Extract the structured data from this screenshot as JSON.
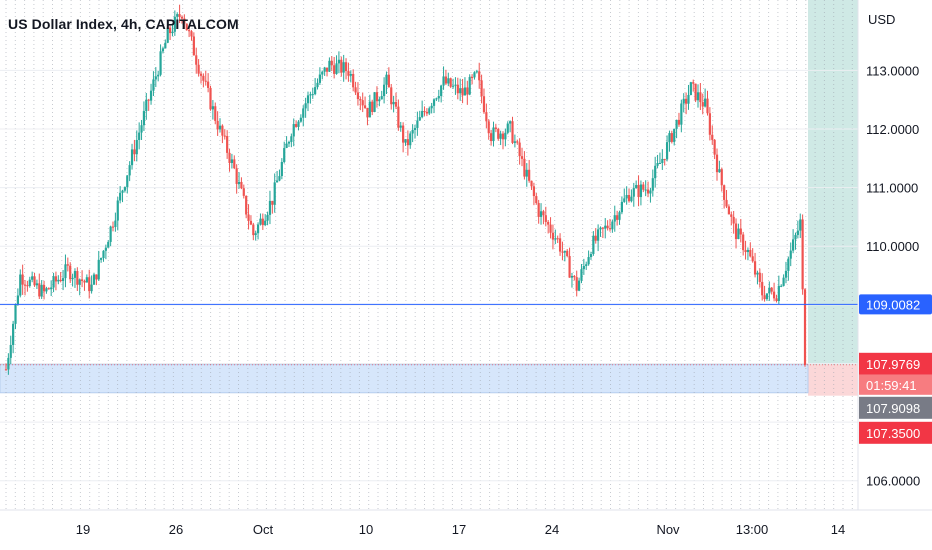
{
  "title": "US Dollar Index, 4h, CAPITALCOM",
  "currency": "USD",
  "colors": {
    "up": "#26a69a",
    "down": "#ef5350",
    "grid": "#9aa0ab",
    "h_line": "#2962ff",
    "h_tag": "#2962ff",
    "price_tag": "#f23645",
    "price_tag_countdown": "#f77c80",
    "gray_tag": "#787b86",
    "zone_fill": "#d6e6fb",
    "target_fill": "#cfe9e5",
    "stop_fill": "#fbd7d8",
    "text": "#131722"
  },
  "chart_data": {
    "type": "candlestick",
    "timeframe": "4h",
    "symbol": "US Dollar Index",
    "source": "CAPITALCOM",
    "y_axis": {
      "min": 105.5,
      "max": 114.2,
      "ticks": [
        "113.0000",
        "112.0000",
        "111.0000",
        "110.0000",
        "106.0000"
      ]
    },
    "x_axis": {
      "ticks": [
        "19",
        "26",
        "Oct",
        "10",
        "17",
        "24",
        "Nov",
        "13:00",
        "14"
      ]
    },
    "horizontal_line": {
      "value": 109.0082,
      "label": "109.0082"
    },
    "last_price": {
      "value": 107.9769,
      "label": "107.9769",
      "countdown": "01:59:41"
    },
    "markers": [
      {
        "value": 107.9098,
        "label": "107.9098",
        "kind": "gray"
      },
      {
        "value": 107.35,
        "label": "107.3500",
        "kind": "stop"
      }
    ],
    "zone": {
      "from": 107.5,
      "to": 107.98
    },
    "position": {
      "entry": 107.98,
      "target": 114.2,
      "stop": 107.45
    },
    "trend_path": [
      [
        0,
        107.9
      ],
      [
        6,
        109.5
      ],
      [
        16,
        109.2
      ],
      [
        26,
        109.6
      ],
      [
        36,
        109.3
      ],
      [
        44,
        110.3
      ],
      [
        52,
        111.4
      ],
      [
        60,
        112.5
      ],
      [
        68,
        113.6
      ],
      [
        74,
        114.0
      ],
      [
        80,
        113.2
      ],
      [
        88,
        112.2
      ],
      [
        96,
        111.3
      ],
      [
        104,
        110.2
      ],
      [
        112,
        110.8
      ],
      [
        120,
        112.0
      ],
      [
        128,
        112.6
      ],
      [
        136,
        113.1
      ],
      [
        144,
        113.0
      ],
      [
        152,
        112.3
      ],
      [
        160,
        112.8
      ],
      [
        168,
        111.7
      ],
      [
        176,
        112.3
      ],
      [
        184,
        112.8
      ],
      [
        192,
        112.6
      ],
      [
        198,
        112.9
      ],
      [
        204,
        111.9
      ],
      [
        212,
        112.0
      ],
      [
        218,
        111.3
      ],
      [
        224,
        110.6
      ],
      [
        232,
        110.1
      ],
      [
        240,
        109.3
      ],
      [
        246,
        110.0
      ],
      [
        254,
        110.4
      ],
      [
        262,
        110.9
      ],
      [
        270,
        111.0
      ],
      [
        276,
        111.5
      ],
      [
        282,
        112.1
      ],
      [
        288,
        112.7
      ],
      [
        294,
        112.4
      ],
      [
        300,
        111.2
      ],
      [
        306,
        110.3
      ],
      [
        312,
        109.9
      ],
      [
        318,
        109.2
      ],
      [
        324,
        109.2
      ],
      [
        330,
        109.9
      ],
      [
        334,
        110.4
      ],
      [
        336,
        107.98
      ]
    ]
  }
}
